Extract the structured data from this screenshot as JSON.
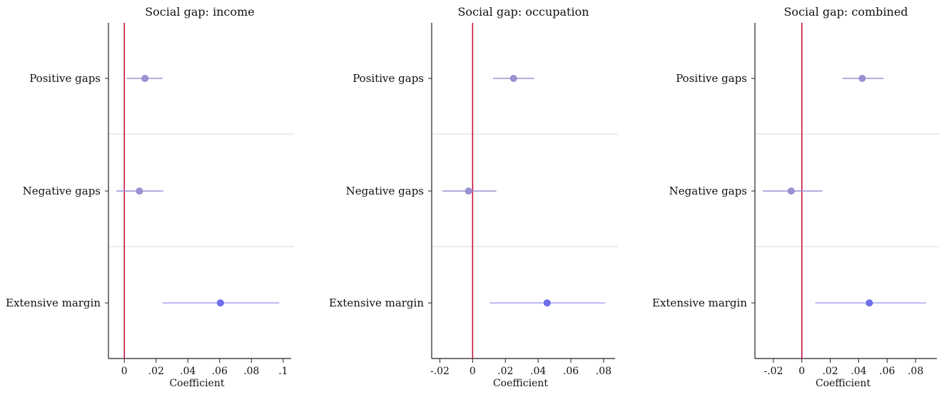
{
  "chart_data": [
    {
      "type": "scatter",
      "subtype": "coefficient-plot",
      "title": "Social gap: income",
      "xlabel": "Coefficient",
      "xlim": [
        -0.01,
        0.105
      ],
      "xticks": [
        0,
        0.02,
        0.04,
        0.06,
        0.08,
        0.1
      ],
      "xtick_labels": [
        "0",
        ".02",
        ".04",
        ".06",
        ".08",
        ".1"
      ],
      "reference_line": 0,
      "grid": false,
      "categories": [
        "Positive gaps",
        "Negative gaps",
        "Extensive margin"
      ],
      "estimates": [
        0.013,
        0.0095,
        0.0605
      ],
      "ci_low": [
        0.0015,
        -0.005,
        0.024
      ],
      "ci_high": [
        0.024,
        0.0245,
        0.0975
      ]
    },
    {
      "type": "scatter",
      "subtype": "coefficient-plot",
      "title": "Social gap: occupation",
      "xlabel": "Coefficient",
      "xlim": [
        -0.025,
        0.087
      ],
      "xticks": [
        -0.02,
        0,
        0.02,
        0.04,
        0.06,
        0.08
      ],
      "xtick_labels": [
        "-.02",
        "0",
        ".02",
        ".04",
        ".06",
        ".08"
      ],
      "reference_line": 0,
      "grid": false,
      "categories": [
        "Positive gaps",
        "Negative gaps",
        "Extensive margin"
      ],
      "estimates": [
        0.025,
        -0.0025,
        0.0455
      ],
      "ci_low": [
        0.0125,
        -0.0185,
        0.0105
      ],
      "ci_high": [
        0.0375,
        0.0145,
        0.081
      ]
    },
    {
      "type": "scatter",
      "subtype": "coefficient-plot",
      "title": "Social gap: combined",
      "xlabel": "Coefficient",
      "xlim": [
        -0.033,
        0.095
      ],
      "xticks": [
        -0.02,
        0,
        0.02,
        0.04,
        0.06,
        0.08
      ],
      "xtick_labels": [
        "-.02",
        "0",
        ".02",
        ".04",
        ".06",
        ".08"
      ],
      "reference_line": 0,
      "grid": false,
      "categories": [
        "Positive gaps",
        "Negative gaps",
        "Extensive margin"
      ],
      "estimates": [
        0.0425,
        -0.0075,
        0.0475
      ],
      "ci_low": [
        0.0285,
        -0.0275,
        0.0095
      ],
      "ci_high": [
        0.0575,
        0.0145,
        0.0875
      ]
    }
  ],
  "colors": {
    "marker_gaps": "#9b92d4",
    "marker_extensive": "#7070ee",
    "ci_gaps": "#9b92d4",
    "ci_extensive": "#a6a6f4",
    "reference_line": "#c4123d",
    "axis": "#222222",
    "separator": "#e6e6e6"
  }
}
